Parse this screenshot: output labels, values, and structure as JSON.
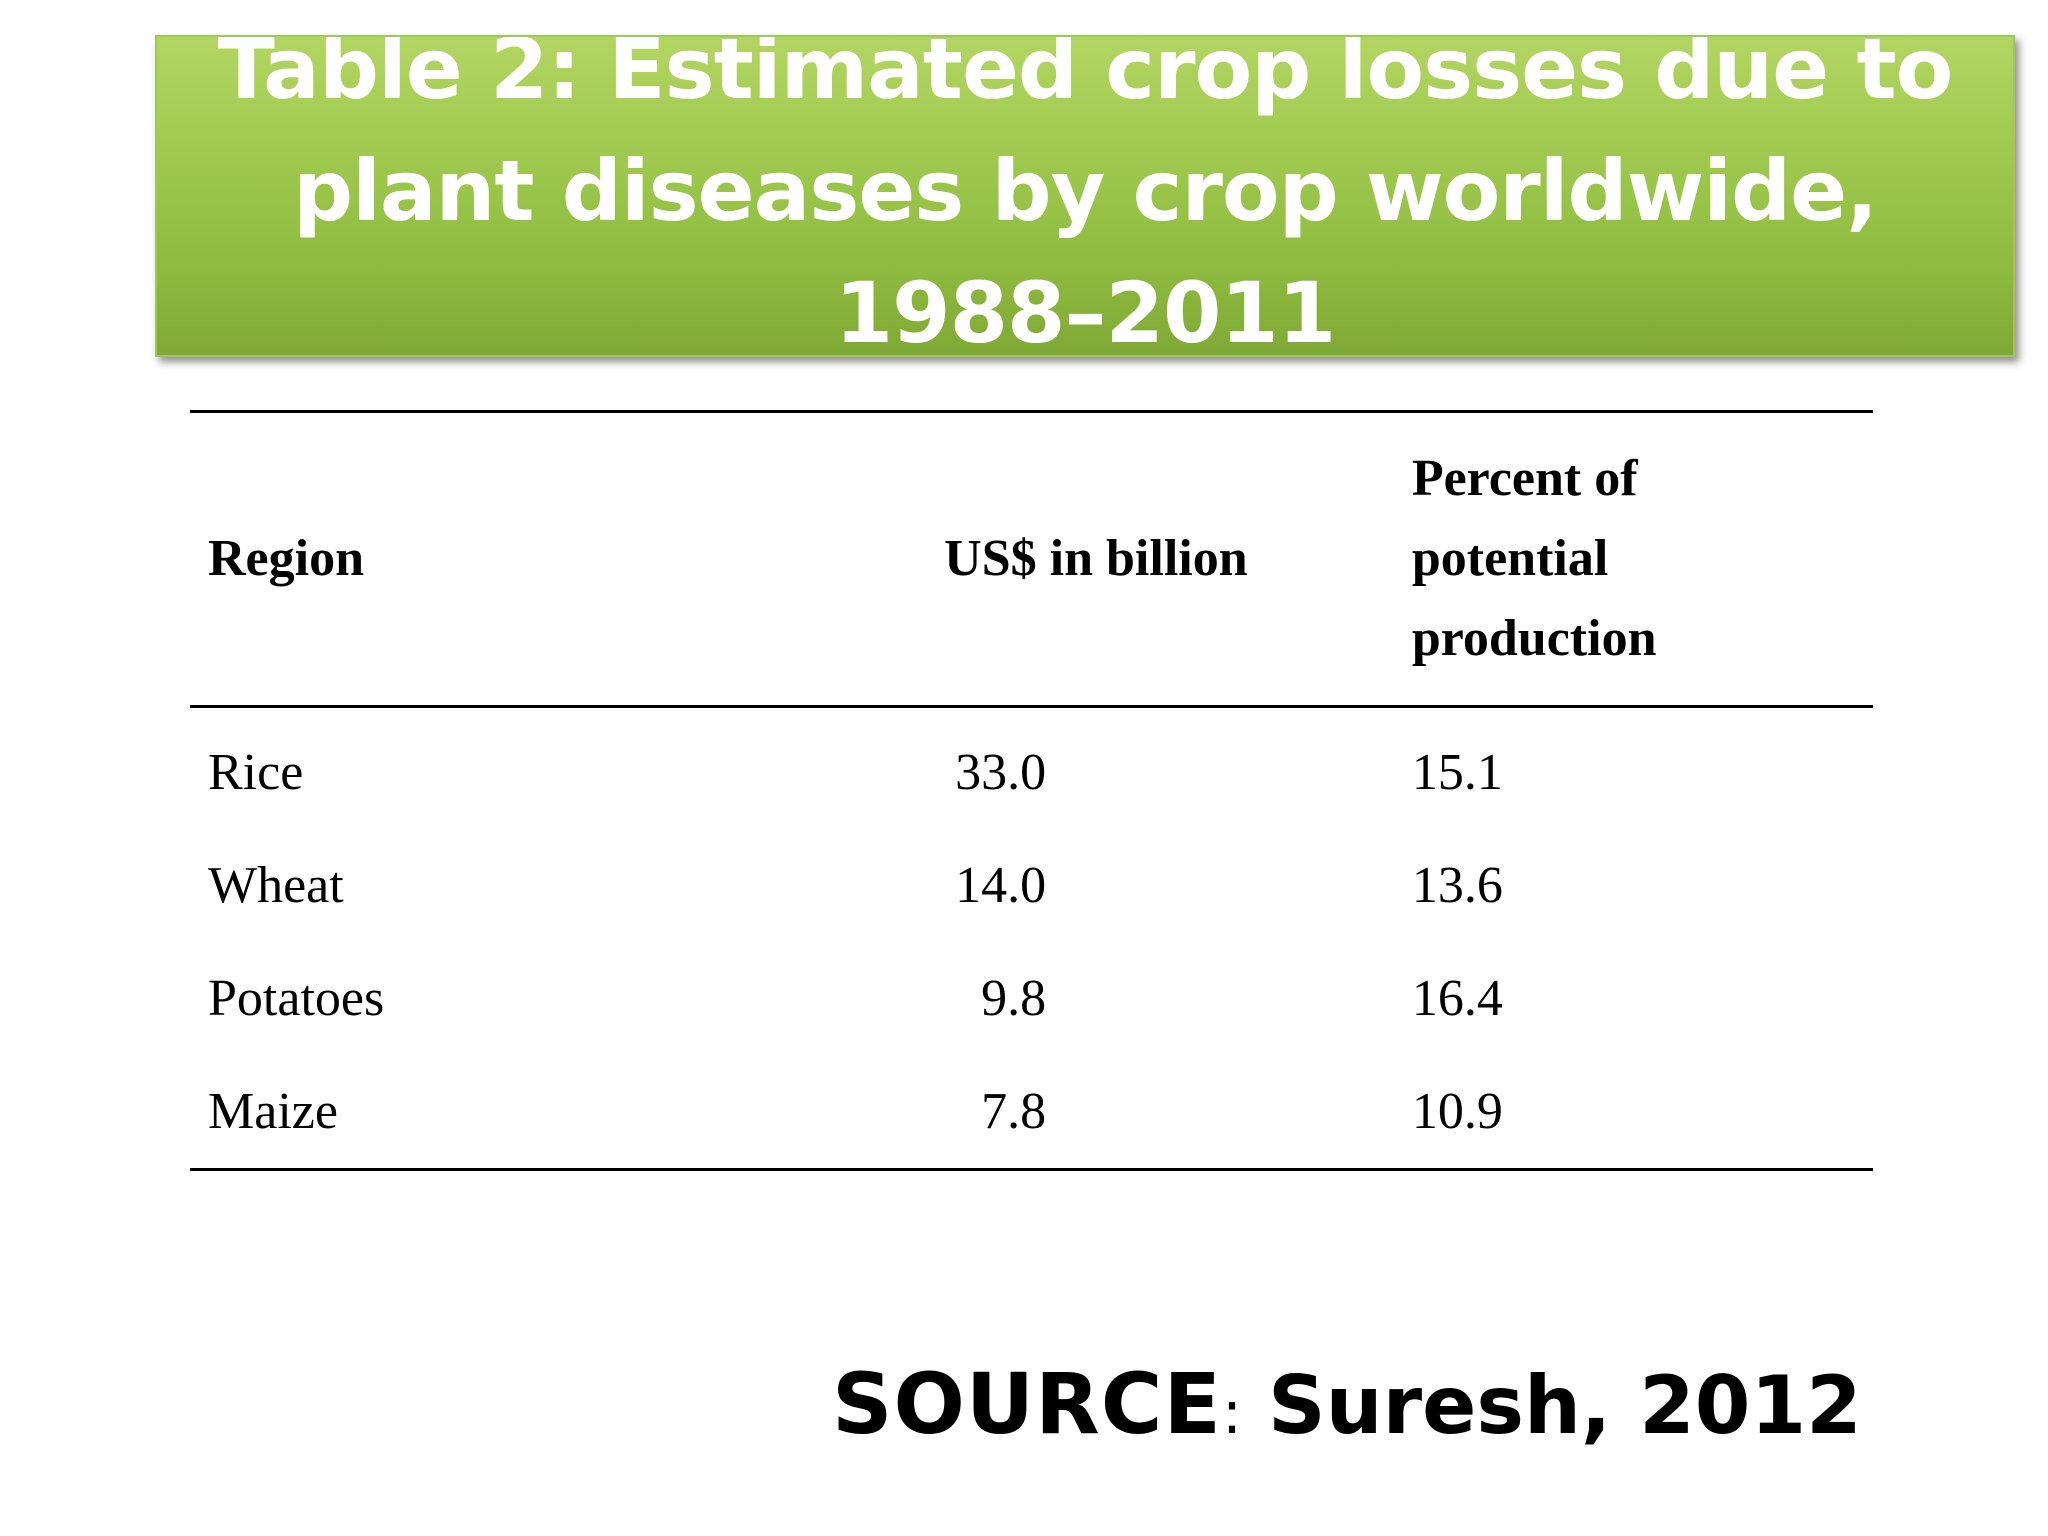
{
  "slide": {
    "title": "Table 2: Estimated crop losses due to plant diseases by crop worldwide, 1988–2011"
  },
  "table": {
    "headers": {
      "region": "Region",
      "usd": "US$ in billion",
      "pct_line1_a": "Percent",
      "pct_line1_b": "of",
      "pct_line2": "potential",
      "pct_line3": "production"
    },
    "rows": [
      {
        "region": "Rice",
        "usd": "33.0",
        "pct": "15.1"
      },
      {
        "region": "Wheat",
        "usd": "14.0",
        "pct": "13.6"
      },
      {
        "region": "Potatoes",
        "usd": "9.8",
        "pct": "16.4"
      },
      {
        "region": "Maize",
        "usd": "7.8",
        "pct": "10.9"
      }
    ]
  },
  "source": {
    "label": "SOURCE",
    "colon": ":",
    "value": "Suresh, 2012"
  },
  "colors": {
    "banner_green": "#9bc64c",
    "title_text": "#ffffff"
  }
}
